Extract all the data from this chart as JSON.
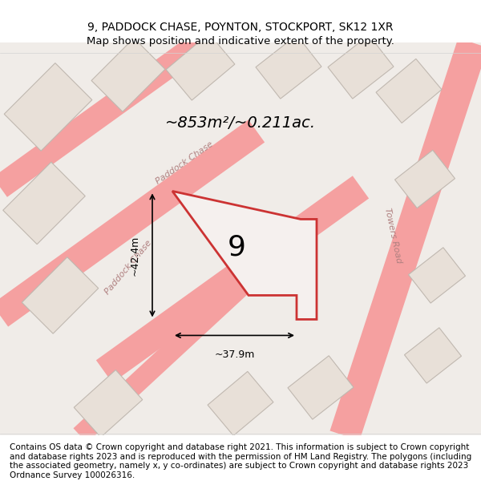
{
  "title_line1": "9, PADDOCK CHASE, POYNTON, STOCKPORT, SK12 1XR",
  "title_line2": "Map shows position and indicative extent of the property.",
  "footer_text": "Contains OS data © Crown copyright and database right 2021. This information is subject to Crown copyright and database rights 2023 and is reproduced with the permission of HM Land Registry. The polygons (including the associated geometry, namely x, y co-ordinates) are subject to Crown copyright and database rights 2023 Ordnance Survey 100026316.",
  "area_label": "~853m²/~0.211ac.",
  "plot_number": "9",
  "dim_width": "~37.9m",
  "dim_height": "~42.4m",
  "bg_color": "#f5f0ee",
  "map_bg": "#f0ece8",
  "plot_fill": "#f5f0ee",
  "plot_edge": "#cc3333",
  "road_color": "#f5a0a0",
  "building_color": "#e8e0d8",
  "street_label1": "Paddock Chase",
  "street_label2": "Towers Road",
  "street_label3": "Paddock Chase",
  "title_fontsize": 10,
  "footer_fontsize": 7.5
}
